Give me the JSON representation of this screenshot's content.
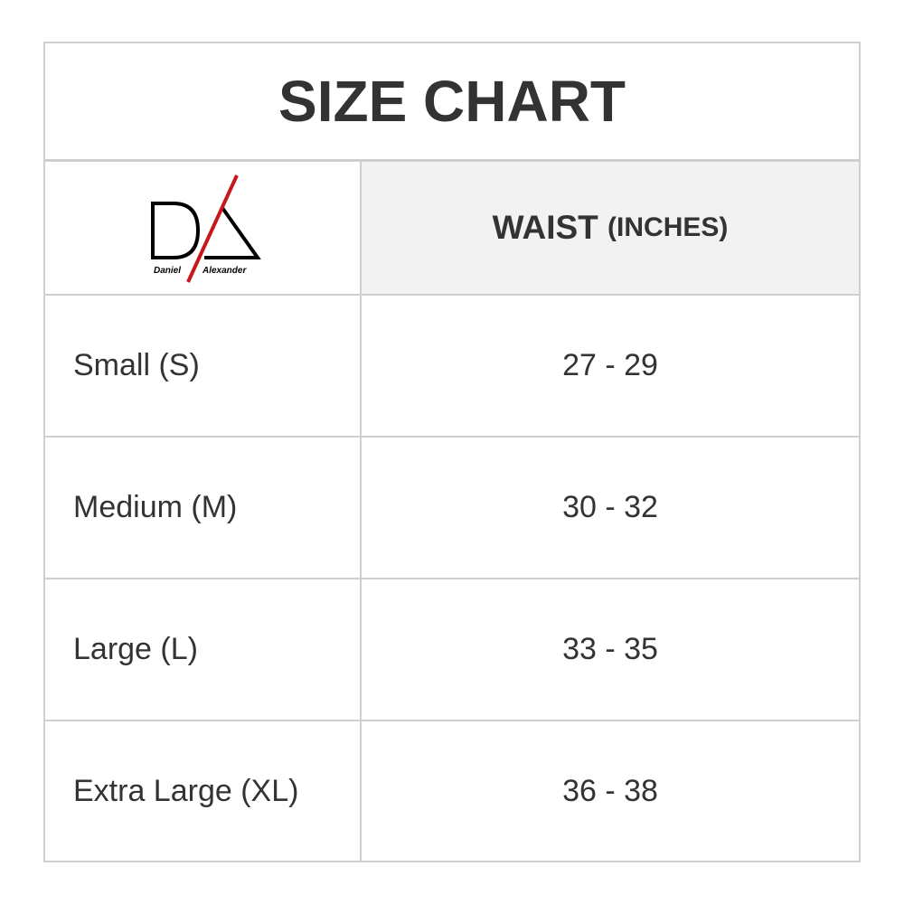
{
  "title": "SIZE CHART",
  "logo": {
    "text_left": "Daniel",
    "text_right": "Alexander",
    "accent_color": "#c8161d"
  },
  "header": {
    "measure": "WAIST",
    "unit": "(INCHES)"
  },
  "rows": [
    {
      "size": "Small (S)",
      "waist": "27 - 29"
    },
    {
      "size": "Medium (M)",
      "waist": "30 - 32"
    },
    {
      "size": "Large (L)",
      "waist": "33 - 35"
    },
    {
      "size": "Extra Large (XL)",
      "waist": "36 - 38"
    }
  ]
}
